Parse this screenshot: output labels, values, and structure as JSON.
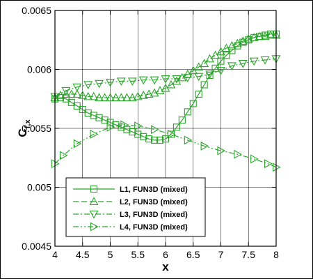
{
  "chart_data": {
    "type": "line",
    "xlabel": "x",
    "ylabel_main": "C",
    "ylabel_sub": "f,x",
    "xlim": [
      4,
      8
    ],
    "ylim": [
      0.0045,
      0.0065
    ],
    "x_ticks": [
      4,
      4.5,
      5,
      5.5,
      6,
      6.5,
      7,
      7.5,
      8
    ],
    "x_tick_labels": [
      "4",
      "4.5",
      "5",
      "5.5",
      "6",
      "6.5",
      "7",
      "7.5",
      "8"
    ],
    "y_ticks": [
      0.0045,
      0.005,
      0.0055,
      0.006,
      0.0065
    ],
    "y_tick_labels": [
      "0.0045",
      "0.005",
      "0.0055",
      "0.006",
      "0.0065"
    ],
    "grid": true,
    "legend_position": "bottom-center",
    "color": "#2aa52a",
    "series": [
      {
        "name": "L1, FUN3D (mixed)",
        "marker": "square",
        "dash": "solid",
        "x": [
          4.0,
          4.1,
          4.2,
          4.3,
          4.4,
          4.5,
          4.6,
          4.7,
          4.8,
          4.9,
          5.0,
          5.1,
          5.2,
          5.3,
          5.4,
          5.5,
          5.6,
          5.7,
          5.8,
          5.9,
          6.0,
          6.1,
          6.2,
          6.3,
          6.4,
          6.5,
          6.6,
          6.7,
          6.8,
          6.9,
          7.0,
          7.1,
          7.2,
          7.3,
          7.4,
          7.5,
          7.6,
          7.7,
          7.8,
          7.9,
          8.0
        ],
        "y": [
          0.00575,
          0.00576,
          0.00575,
          0.00572,
          0.00569,
          0.00566,
          0.00563,
          0.00561,
          0.00559,
          0.00557,
          0.00555,
          0.00553,
          0.00551,
          0.00549,
          0.00547,
          0.00545,
          0.00543,
          0.00541,
          0.0054,
          0.0054,
          0.00541,
          0.00545,
          0.00551,
          0.00557,
          0.00564,
          0.00571,
          0.00579,
          0.00587,
          0.00595,
          0.00601,
          0.00607,
          0.00612,
          0.00616,
          0.0062,
          0.00623,
          0.00625,
          0.00627,
          0.00628,
          0.00629,
          0.0063,
          0.0063
        ]
      },
      {
        "name": "L2, FUN3D (mixed)",
        "marker": "triangle-up",
        "dash": "dashed",
        "x": [
          4.0,
          4.1,
          4.2,
          4.3,
          4.4,
          4.5,
          4.6,
          4.7,
          4.8,
          4.9,
          5.0,
          5.1,
          5.2,
          5.3,
          5.4,
          5.5,
          5.6,
          5.7,
          5.8,
          5.9,
          6.0,
          6.1,
          6.2,
          6.3,
          6.4,
          6.5,
          6.6,
          6.7,
          6.8,
          6.9,
          7.0,
          7.1,
          7.2,
          7.3,
          7.4,
          7.5,
          7.6,
          7.7,
          7.8,
          7.9,
          8.0
        ],
        "y": [
          0.00576,
          0.00578,
          0.00579,
          0.00579,
          0.00579,
          0.00578,
          0.00577,
          0.00577,
          0.00576,
          0.00576,
          0.00576,
          0.00576,
          0.00576,
          0.00576,
          0.00576,
          0.00577,
          0.00578,
          0.00579,
          0.0058,
          0.00582,
          0.00584,
          0.00587,
          0.0059,
          0.00593,
          0.00596,
          0.00599,
          0.00602,
          0.00605,
          0.00609,
          0.00612,
          0.00615,
          0.00618,
          0.0062,
          0.00622,
          0.00624,
          0.00626,
          0.00627,
          0.00628,
          0.00628,
          0.00629,
          0.00629
        ]
      },
      {
        "name": "L3, FUN3D (mixed)",
        "marker": "triangle-down",
        "dash": "dashdot",
        "x": [
          4.0,
          4.2,
          4.4,
          4.6,
          4.8,
          5.0,
          5.2,
          5.4,
          5.6,
          5.8,
          6.0,
          6.2,
          6.4,
          6.6,
          6.8,
          7.0,
          7.2,
          7.4,
          7.6,
          7.8,
          8.0
        ],
        "y": [
          0.00577,
          0.00582,
          0.00585,
          0.00587,
          0.00588,
          0.00589,
          0.0059,
          0.0059,
          0.00591,
          0.00591,
          0.00592,
          0.00592,
          0.00593,
          0.00594,
          0.00596,
          0.00599,
          0.00603,
          0.00605,
          0.00607,
          0.00608,
          0.00609
        ]
      },
      {
        "name": "L4, FUN3D (mixed)",
        "marker": "triangle-right",
        "dash": "dashdotdot",
        "x": [
          4.0,
          4.15,
          4.4,
          4.7,
          5.0,
          5.25,
          5.5,
          5.8,
          6.1,
          6.4,
          6.7,
          7.0,
          7.3,
          7.6,
          7.85,
          8.0
        ],
        "y": [
          0.0052,
          0.00527,
          0.00537,
          0.00545,
          0.00551,
          0.00553,
          0.00552,
          0.00549,
          0.00545,
          0.0054,
          0.00535,
          0.00531,
          0.00528,
          0.00524,
          0.0052,
          0.00517
        ]
      }
    ]
  }
}
